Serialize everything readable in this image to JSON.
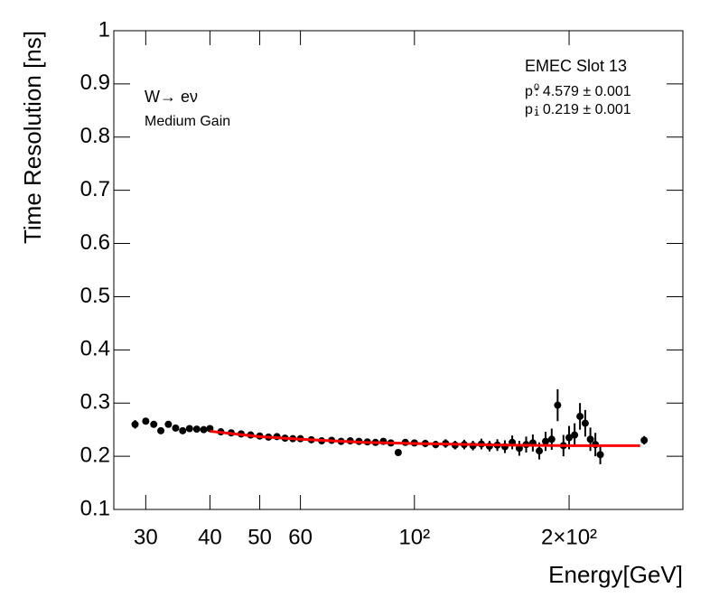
{
  "chart_data": {
    "type": "scatter",
    "x_label": "Energy[GeV]",
    "y_label": "Time Resolution [ns]",
    "annotations": [
      "W→ eν",
      "Medium Gain",
      "EMEC Slot 13"
    ],
    "fit_params": [
      {
        "symbol": "p",
        "index": "0",
        "text": ": 4.579 ± 0.001"
      },
      {
        "symbol": "p",
        "index": "1",
        "text": ": 0.219 ± 0.001"
      }
    ],
    "log_x": true,
    "xlim": [
      26,
      333
    ],
    "ylim": [
      0.1,
      1
    ],
    "xticks": [
      30,
      40,
      50,
      60,
      {
        "value": 100,
        "label": "10²"
      },
      {
        "value": 200,
        "label": "2×10²"
      }
    ],
    "yticks": [
      0.1,
      0.2,
      0.3,
      0.4,
      0.5,
      0.6,
      0.7,
      0.8,
      0.9,
      1
    ],
    "color": "#000000",
    "x": [
      28.6,
      30,
      31.1,
      32.1,
      33.2,
      34.3,
      35.4,
      36.5,
      37.7,
      38.9,
      40,
      42,
      44,
      46,
      48,
      50,
      52,
      54,
      56,
      58,
      60,
      63,
      66,
      69,
      72,
      75,
      78,
      81,
      84,
      87,
      90,
      93,
      96,
      100,
      105,
      110,
      115,
      120,
      125,
      130,
      135,
      140,
      145,
      150,
      155,
      160,
      165,
      170,
      175,
      180,
      185,
      190,
      195,
      200,
      205,
      210,
      215,
      220,
      225,
      230,
      280
    ],
    "values": [
      0.26,
      0.266,
      0.26,
      0.248,
      0.26,
      0.253,
      0.248,
      0.252,
      0.251,
      0.25,
      0.252,
      0.246,
      0.244,
      0.242,
      0.24,
      0.238,
      0.236,
      0.237,
      0.234,
      0.233,
      0.233,
      0.231,
      0.229,
      0.23,
      0.228,
      0.229,
      0.228,
      0.227,
      0.226,
      0.228,
      0.225,
      0.207,
      0.226,
      0.225,
      0.224,
      0.222,
      0.224,
      0.221,
      0.222,
      0.22,
      0.223,
      0.219,
      0.221,
      0.218,
      0.226,
      0.215,
      0.222,
      0.225,
      0.21,
      0.228,
      0.232,
      0.296,
      0.22,
      0.235,
      0.24,
      0.275,
      0.262,
      0.232,
      0.222,
      0.203,
      0.23
    ],
    "errors": [
      0.008,
      0.005,
      0.004,
      0.004,
      0.004,
      0.004,
      0.004,
      0.004,
      0.004,
      0.004,
      0.004,
      0.004,
      0.004,
      0.004,
      0.004,
      0.004,
      0.004,
      0.004,
      0.004,
      0.004,
      0.004,
      0.004,
      0.005,
      0.005,
      0.005,
      0.005,
      0.005,
      0.005,
      0.005,
      0.006,
      0.006,
      0.006,
      0.006,
      0.006,
      0.007,
      0.007,
      0.008,
      0.008,
      0.009,
      0.009,
      0.01,
      0.01,
      0.011,
      0.012,
      0.013,
      0.014,
      0.015,
      0.016,
      0.016,
      0.018,
      0.02,
      0.03,
      0.02,
      0.022,
      0.022,
      0.025,
      0.025,
      0.022,
      0.022,
      0.018,
      0.008
    ],
    "fit": {
      "color": "#ff0000",
      "x": [
        40,
        50,
        60,
        80,
        100,
        150,
        200,
        275
      ],
      "values": [
        0.247,
        0.237,
        0.232,
        0.226,
        0.224,
        0.221,
        0.22,
        0.22
      ]
    }
  }
}
